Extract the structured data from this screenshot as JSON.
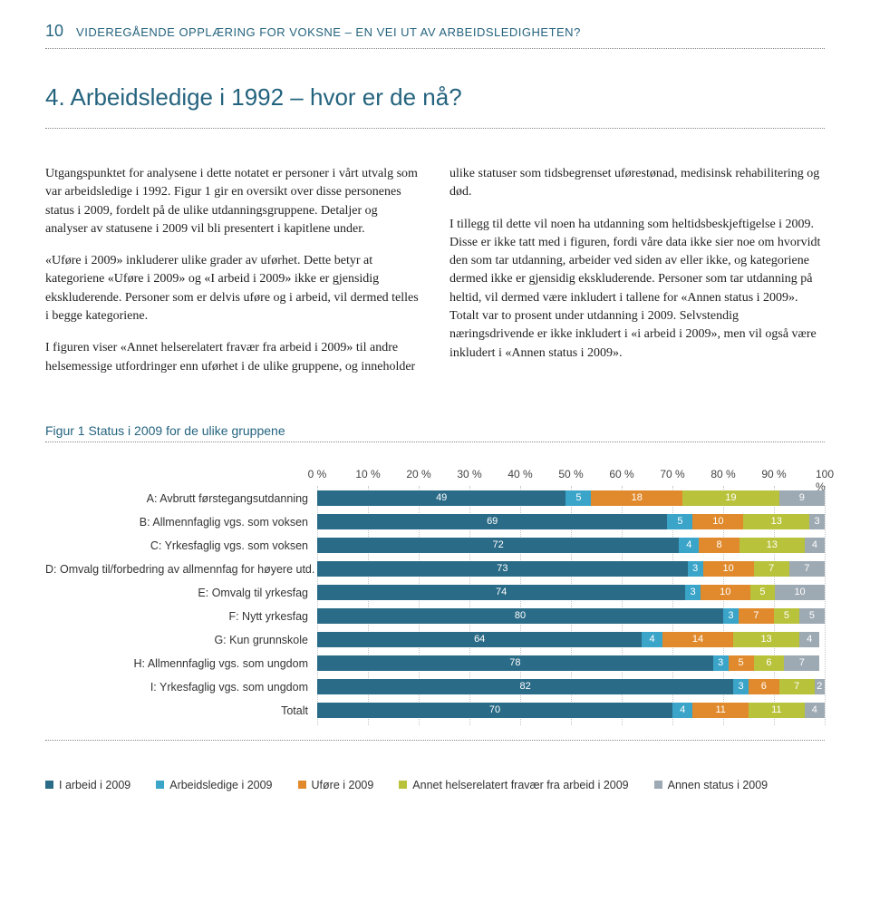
{
  "page_number": "10",
  "running_title": "VIDEREGÅENDE OPPLÆRING FOR VOKSNE – EN VEI UT AV ARBEIDSLEDIGHETEN?",
  "section_title": "4. Arbeidsledige i 1992 – hvor er de nå?",
  "paragraphs": [
    "Utgangspunktet for analysene i dette notatet er personer i vårt utvalg som var arbeidsledige i 1992. Figur 1 gir en oversikt over disse personenes status i 2009, fordelt på de ulike utdanningsgruppene. Detaljer og analyser av statusene i 2009 vil bli presentert i kapitlene under.",
    "«Uføre i 2009» inkluderer ulike grader av uførhet. Dette betyr at kategoriene «Uføre i 2009» og «I arbeid i 2009» ikke er gjensidig ekskluderende. Personer som er delvis uføre og i arbeid, vil dermed telles i begge kategoriene.",
    "I figuren viser «Annet helserelatert fravær fra arbeid i 2009» til andre helsemessige utfordringer enn uførhet i de ulike gruppene, og inneholder ulike statuser som tidsbegrenset uførestønad, medisinsk rehabilitering og død.",
    "I tillegg til dette vil noen ha utdanning som heltidsbeskjeftigelse i 2009. Disse er ikke tatt med i figuren, fordi våre data ikke sier noe om hvorvidt den som tar utdanning, arbeider ved siden av eller ikke, og kategoriene dermed ikke er gjensidig ekskluderende. Personer som tar utdanning på heltid, vil dermed være inkludert i tallene for «Annen status i 2009». Totalt var to prosent under utdanning i 2009. Selvstendig næringsdrivende er ikke inkludert i «i arbeid i 2009», men vil også være inkludert i «Annen status i 2009»."
  ],
  "figure": {
    "title": "Figur 1 Status i 2009 for de ulike gruppene",
    "type": "stacked-horizontal-bar",
    "xmax": 100,
    "tick_step": 10,
    "tick_suffix": " %",
    "grid_color": "#c5c5c5",
    "label_fontsize": 12,
    "series": [
      {
        "name": "I arbeid i 2009",
        "color": "#2a6b87"
      },
      {
        "name": "Arbeidsledige i 2009",
        "color": "#3aa4c9"
      },
      {
        "name": "Uføre i 2009",
        "color": "#e08a2d"
      },
      {
        "name": "Annet helserelatert fravær fra arbeid i 2009",
        "color": "#b8c23a"
      },
      {
        "name": "Annen status i 2009",
        "color": "#9da9b3"
      }
    ],
    "rows": [
      {
        "label": "A: Avbrutt førstegangsutdanning",
        "values": [
          49,
          5,
          18,
          19,
          9
        ]
      },
      {
        "label": "B: Allmennfaglig vgs. som voksen",
        "values": [
          69,
          5,
          10,
          13,
          3
        ]
      },
      {
        "label": "C: Yrkesfaglig vgs. som voksen",
        "values": [
          72,
          4,
          8,
          13,
          4
        ]
      },
      {
        "label": "D: Omvalg til/forbedring av allmennfag for høyere utd.",
        "values": [
          73,
          3,
          10,
          7,
          7
        ]
      },
      {
        "label": "E: Omvalg til yrkesfag",
        "values": [
          74,
          3,
          10,
          5,
          10
        ]
      },
      {
        "label": "F: Nytt yrkesfag",
        "values": [
          80,
          3,
          7,
          5,
          5
        ]
      },
      {
        "label": "G: Kun grunnskole",
        "values": [
          64,
          4,
          14,
          13,
          4
        ]
      },
      {
        "label": "H: Allmennfaglig vgs. som ungdom",
        "values": [
          78,
          3,
          5,
          6,
          7
        ]
      },
      {
        "label": "I: Yrkesfaglig vgs. som ungdom",
        "values": [
          82,
          3,
          6,
          7,
          2
        ]
      },
      {
        "label": "Totalt",
        "values": [
          70,
          4,
          11,
          11,
          4
        ]
      }
    ]
  }
}
